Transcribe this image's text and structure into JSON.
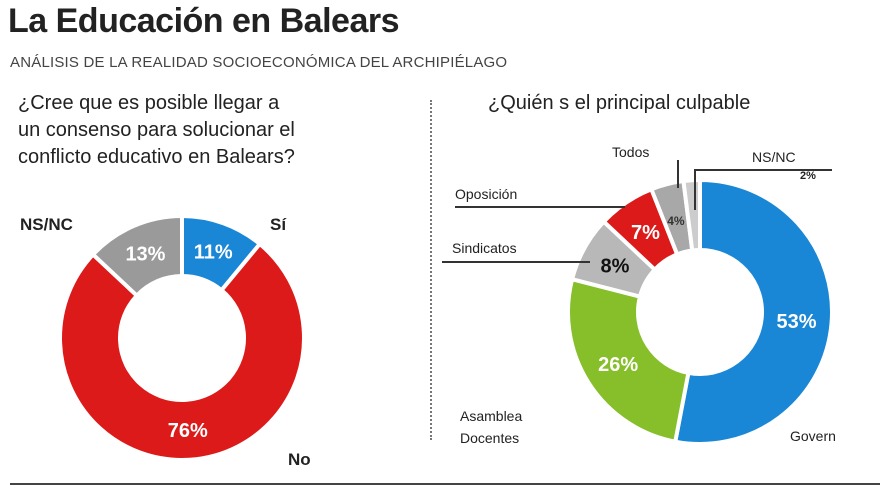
{
  "header": {
    "title": "La Educación en Balears",
    "subtitle": "ANÁLISIS DE LA REALIDAD SOCIOECONÓMICA DEL ARCHIPIÉLAGO"
  },
  "chart_data": [
    {
      "type": "pie",
      "title": "¿Cree que es posible llegar a un consenso para solucionar el conflicto educativo en Balears?",
      "slices": [
        {
          "label": "Sí",
          "value": 11,
          "value_label": "11%",
          "color": "#1a86d6"
        },
        {
          "label": "No",
          "value": 76,
          "value_label": "76%",
          "color": "#dd1a1a"
        },
        {
          "label": "NS/NC",
          "value": 13,
          "value_label": "13%",
          "color": "#9a9a9a"
        }
      ]
    },
    {
      "type": "pie",
      "title": "¿Quién es el principal culpable",
      "slices": [
        {
          "label": "Govern",
          "value": 53,
          "value_label": "53%",
          "color": "#1a86d6"
        },
        {
          "label": "Asamblea Docentes",
          "value": 26,
          "value_label": "26%",
          "color": "#86bf2a"
        },
        {
          "label": "Sindicatos",
          "value": 8,
          "value_label": "8%",
          "color": "#b8b8b8"
        },
        {
          "label": "Oposición",
          "value": 7,
          "value_label": "7%",
          "color": "#dd1a1a"
        },
        {
          "label": "Todos",
          "value": 4,
          "value_label": "4%",
          "color": "#a8a8a8"
        },
        {
          "label": "NS/NC",
          "value": 2,
          "value_label": "2%",
          "color": "#cccccc"
        }
      ]
    }
  ],
  "q1_lines": [
    "¿Cree que es posible llegar a",
    "un consenso para solucionar el",
    "conflicto educativo en Balears?"
  ],
  "q2_title": "¿Quién s el principal culpable",
  "labels": {
    "asamblea_line1": "Asamblea",
    "asamblea_line2": "Docentes"
  }
}
